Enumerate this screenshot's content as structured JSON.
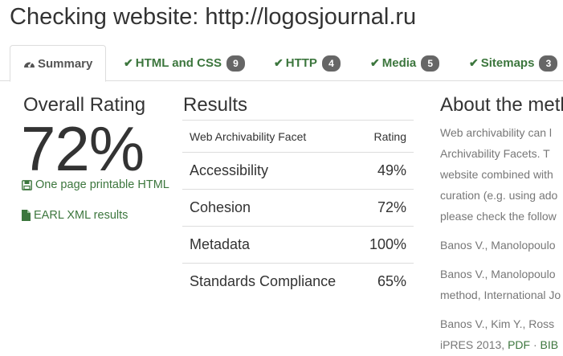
{
  "page": {
    "title": "Checking website: http://logosjournal.ru"
  },
  "tabs": [
    {
      "label": "Summary",
      "icon": "dashboard-icon",
      "active": true
    },
    {
      "label": "HTML and CSS",
      "icon": "check-icon",
      "badge": "9"
    },
    {
      "label": "HTTP",
      "icon": "check-icon",
      "badge": "4"
    },
    {
      "label": "Media",
      "icon": "check-icon",
      "badge": "5"
    },
    {
      "label": "Sitemaps",
      "icon": "check-icon",
      "badge": "3"
    }
  ],
  "overall": {
    "heading": "Overall Rating",
    "value": "72%",
    "printable_link": "One page printable HTML",
    "earl_link": "EARL XML results"
  },
  "results": {
    "heading": "Results",
    "columns": [
      "Web Archivability Facet",
      "Rating"
    ],
    "rows": [
      {
        "facet": "Accessibility",
        "rating": "49%"
      },
      {
        "facet": "Cohesion",
        "rating": "72%"
      },
      {
        "facet": "Metadata",
        "rating": "100%"
      },
      {
        "facet": "Standards Compliance",
        "rating": "65%"
      }
    ]
  },
  "about": {
    "heading": "About the meth",
    "lines": [
      "Web archivability can l",
      "Archivability Facets. T",
      "website combined with",
      "curation (e.g. using ado",
      "please check the follow"
    ],
    "ref1": "Banos V., Manolopoulo",
    "ref2_line1": "Banos V., Manolopoulo",
    "ref2_line2": "method, International Jo",
    "ref3_line1": "Banos V., Kim Y., Ross",
    "ref3_prefix": "iPRES 2013, ",
    "ref3_pdf": "PDF",
    "ref3_sep": " · ",
    "ref3_bib": "BIB"
  },
  "colors": {
    "link": "#3c763d",
    "badge": "#666666",
    "border": "#dddddd",
    "muted_text": "#777777"
  }
}
